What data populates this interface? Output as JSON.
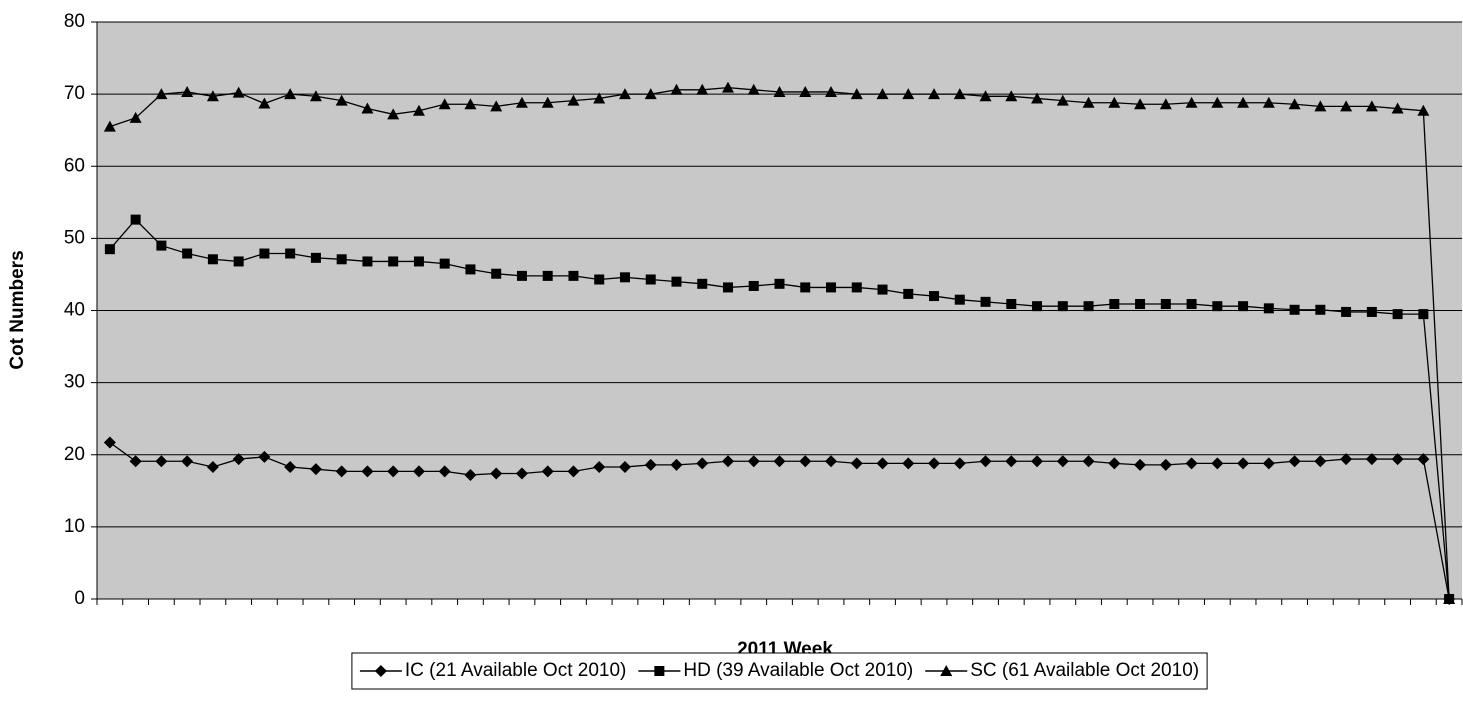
{
  "chart_data": {
    "type": "line",
    "x_label": "2011 Week",
    "y_label": "Cot Numbers",
    "categories": [
      null,
      null,
      null,
      null,
      null,
      null,
      null,
      null,
      null,
      null,
      null,
      null,
      null,
      null,
      null,
      null,
      null,
      null,
      null,
      null,
      null,
      null,
      null,
      null,
      null,
      null,
      null,
      null,
      null,
      null,
      null,
      null,
      null,
      null,
      null,
      null,
      null,
      null,
      null,
      null,
      null,
      null,
      null,
      null,
      null,
      null,
      null,
      null,
      null,
      null,
      null,
      null,
      null
    ],
    "ylim": [
      0,
      80
    ],
    "yticks": [
      0,
      10,
      20,
      30,
      40,
      50,
      60,
      70,
      80
    ],
    "grid": true,
    "legend": "bottom",
    "background": "#c8c8c8",
    "series": [
      {
        "name": "IC (21 Available Oct 2010)",
        "color": "#000000",
        "marker": "diamond",
        "values": [
          21.7,
          19.1,
          19.1,
          19.1,
          18.3,
          19.4,
          19.7,
          18.3,
          18,
          17.7,
          17.7,
          17.7,
          17.7,
          17.7,
          17.2,
          17.4,
          17.4,
          17.7,
          17.7,
          18.3,
          18.3,
          18.6,
          18.6,
          18.8,
          19.1,
          19.1,
          19.1,
          19.1,
          19.1,
          18.8,
          18.8,
          18.8,
          18.8,
          18.8,
          19.1,
          19.1,
          19.1,
          19.1,
          19.1,
          18.8,
          18.6,
          18.6,
          18.8,
          18.8,
          18.8,
          18.8,
          19.1,
          19.1,
          19.4,
          19.4,
          19.4,
          19.4,
          0
        ]
      },
      {
        "name": "HD (39 Available Oct 2010)",
        "color": "#000000",
        "marker": "square",
        "values": [
          48.5,
          52.6,
          49,
          47.9,
          47.1,
          46.8,
          47.9,
          47.9,
          47.3,
          47.1,
          46.8,
          46.8,
          46.8,
          46.5,
          45.7,
          45.1,
          44.8,
          44.8,
          44.8,
          44.3,
          44.6,
          44.3,
          44,
          43.7,
          43.2,
          43.4,
          43.7,
          43.2,
          43.2,
          43.2,
          42.9,
          42.3,
          42,
          41.5,
          41.2,
          40.9,
          40.6,
          40.6,
          40.6,
          40.9,
          40.9,
          40.9,
          40.9,
          40.6,
          40.6,
          40.3,
          40.1,
          40.1,
          39.8,
          39.8,
          39.5,
          39.5,
          0
        ]
      },
      {
        "name": "SC (61 Available Oct 2010)",
        "color": "#000000",
        "marker": "triangle",
        "values": [
          65.5,
          66.7,
          70,
          70.3,
          69.7,
          70.2,
          68.7,
          70,
          69.7,
          69.1,
          68,
          67.2,
          67.7,
          68.6,
          68.6,
          68.3,
          68.8,
          68.8,
          69.1,
          69.4,
          70,
          70,
          70.6,
          70.6,
          70.9,
          70.6,
          70.3,
          70.3,
          70.3,
          70,
          70,
          70,
          70,
          70,
          69.7,
          69.7,
          69.4,
          69.1,
          68.8,
          68.8,
          68.6,
          68.6,
          68.8,
          68.8,
          68.8,
          68.8,
          68.6,
          68.3,
          68.3,
          68.3,
          68,
          67.7,
          0
        ]
      }
    ]
  }
}
